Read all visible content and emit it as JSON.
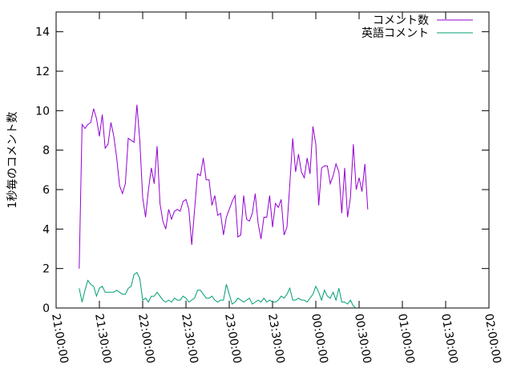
{
  "chart_data": {
    "type": "line",
    "title": "",
    "xlabel": "",
    "ylabel": "1秒毎のコメント数",
    "xlim": [
      0,
      300
    ],
    "ylim": [
      0,
      15
    ],
    "grid": false,
    "legend_position": "top-right",
    "x_ticks": [
      {
        "v": 0,
        "label": "21:00:00"
      },
      {
        "v": 30,
        "label": "21:30:00"
      },
      {
        "v": 60,
        "label": "22:00:00"
      },
      {
        "v": 90,
        "label": "22:30:00"
      },
      {
        "v": 120,
        "label": "23:00:00"
      },
      {
        "v": 150,
        "label": "23:30:00"
      },
      {
        "v": 180,
        "label": "00:00:00"
      },
      {
        "v": 210,
        "label": "00:30:00"
      },
      {
        "v": 240,
        "label": "01:00:00"
      },
      {
        "v": 270,
        "label": "01:30:00"
      },
      {
        "v": 300,
        "label": "02:00:00"
      }
    ],
    "y_ticks": [
      {
        "v": 0,
        "label": "0"
      },
      {
        "v": 2,
        "label": "2"
      },
      {
        "v": 4,
        "label": "4"
      },
      {
        "v": 6,
        "label": "6"
      },
      {
        "v": 8,
        "label": "8"
      },
      {
        "v": 10,
        "label": "10"
      },
      {
        "v": 12,
        "label": "12"
      },
      {
        "v": 14,
        "label": "14"
      }
    ],
    "series": [
      {
        "name": "コメント数",
        "color": "#9400d3",
        "points": [
          [
            16,
            2.0
          ],
          [
            18,
            9.3
          ],
          [
            20,
            9.1
          ],
          [
            22,
            9.3
          ],
          [
            24,
            9.4
          ],
          [
            26,
            10.1
          ],
          [
            28,
            9.6
          ],
          [
            30,
            8.7
          ],
          [
            32,
            9.8
          ],
          [
            34,
            8.1
          ],
          [
            36,
            8.3
          ],
          [
            38,
            9.4
          ],
          [
            40,
            8.7
          ],
          [
            42,
            7.6
          ],
          [
            44,
            6.2
          ],
          [
            46,
            5.8
          ],
          [
            48,
            6.3
          ],
          [
            50,
            8.6
          ],
          [
            52,
            8.5
          ],
          [
            54,
            8.4
          ],
          [
            56,
            10.3
          ],
          [
            58,
            8.5
          ],
          [
            60,
            5.6
          ],
          [
            62,
            4.6
          ],
          [
            64,
            6.0
          ],
          [
            66,
            7.1
          ],
          [
            68,
            6.3
          ],
          [
            70,
            8.2
          ],
          [
            72,
            5.3
          ],
          [
            74,
            4.4
          ],
          [
            76,
            4.0
          ],
          [
            78,
            5.0
          ],
          [
            80,
            4.5
          ],
          [
            82,
            4.9
          ],
          [
            84,
            5.0
          ],
          [
            86,
            4.9
          ],
          [
            88,
            5.4
          ],
          [
            90,
            5.5
          ],
          [
            92,
            5.0
          ],
          [
            94,
            3.2
          ],
          [
            96,
            5.0
          ],
          [
            98,
            6.8
          ],
          [
            100,
            6.7
          ],
          [
            102,
            7.6
          ],
          [
            104,
            6.5
          ],
          [
            106,
            6.5
          ],
          [
            108,
            5.2
          ],
          [
            110,
            5.7
          ],
          [
            112,
            4.7
          ],
          [
            114,
            4.8
          ],
          [
            116,
            3.7
          ],
          [
            118,
            4.6
          ],
          [
            120,
            5.0
          ],
          [
            122,
            5.4
          ],
          [
            124,
            5.7
          ],
          [
            126,
            3.6
          ],
          [
            128,
            3.7
          ],
          [
            130,
            5.7
          ],
          [
            132,
            4.5
          ],
          [
            134,
            4.4
          ],
          [
            136,
            4.8
          ],
          [
            138,
            5.8
          ],
          [
            140,
            4.3
          ],
          [
            142,
            3.5
          ],
          [
            144,
            4.6
          ],
          [
            146,
            4.6
          ],
          [
            148,
            5.7
          ],
          [
            150,
            4.1
          ],
          [
            152,
            5.3
          ],
          [
            154,
            5.1
          ],
          [
            156,
            5.5
          ],
          [
            158,
            3.7
          ],
          [
            160,
            4.1
          ],
          [
            162,
            6.3
          ],
          [
            164,
            8.6
          ],
          [
            166,
            6.9
          ],
          [
            168,
            7.8
          ],
          [
            170,
            6.9
          ],
          [
            172,
            6.6
          ],
          [
            174,
            7.6
          ],
          [
            176,
            6.8
          ],
          [
            178,
            9.2
          ],
          [
            180,
            8.3
          ],
          [
            182,
            5.2
          ],
          [
            184,
            7.1
          ],
          [
            186,
            7.2
          ],
          [
            188,
            7.2
          ],
          [
            190,
            6.3
          ],
          [
            192,
            6.7
          ],
          [
            194,
            7.3
          ],
          [
            196,
            6.9
          ],
          [
            198,
            4.8
          ],
          [
            200,
            7.1
          ],
          [
            202,
            4.6
          ],
          [
            204,
            5.6
          ],
          [
            206,
            8.3
          ],
          [
            208,
            6.0
          ],
          [
            210,
            6.6
          ],
          [
            212,
            5.9
          ],
          [
            214,
            7.3
          ],
          [
            216,
            5.0
          ]
        ]
      },
      {
        "name": "英語コメント",
        "color": "#009e73",
        "points": [
          [
            16,
            1.0
          ],
          [
            18,
            0.3
          ],
          [
            20,
            0.9
          ],
          [
            22,
            1.4
          ],
          [
            24,
            1.2
          ],
          [
            26,
            1.1
          ],
          [
            28,
            0.6
          ],
          [
            30,
            1.0
          ],
          [
            32,
            1.1
          ],
          [
            34,
            0.8
          ],
          [
            36,
            0.8
          ],
          [
            38,
            0.8
          ],
          [
            40,
            0.8
          ],
          [
            42,
            0.9
          ],
          [
            44,
            0.8
          ],
          [
            46,
            0.7
          ],
          [
            48,
            0.7
          ],
          [
            50,
            1.0
          ],
          [
            52,
            1.1
          ],
          [
            54,
            1.7
          ],
          [
            56,
            1.8
          ],
          [
            58,
            1.5
          ],
          [
            60,
            0.4
          ],
          [
            62,
            0.5
          ],
          [
            64,
            0.3
          ],
          [
            66,
            0.6
          ],
          [
            68,
            0.6
          ],
          [
            70,
            0.8
          ],
          [
            72,
            0.6
          ],
          [
            74,
            0.4
          ],
          [
            76,
            0.3
          ],
          [
            78,
            0.4
          ],
          [
            80,
            0.3
          ],
          [
            82,
            0.5
          ],
          [
            84,
            0.4
          ],
          [
            86,
            0.4
          ],
          [
            88,
            0.6
          ],
          [
            90,
            0.5
          ],
          [
            92,
            0.3
          ],
          [
            94,
            0.4
          ],
          [
            96,
            0.5
          ],
          [
            98,
            0.9
          ],
          [
            100,
            0.9
          ],
          [
            102,
            0.7
          ],
          [
            104,
            0.5
          ],
          [
            106,
            0.5
          ],
          [
            108,
            0.6
          ],
          [
            110,
            0.4
          ],
          [
            112,
            0.3
          ],
          [
            114,
            0.4
          ],
          [
            116,
            0.4
          ],
          [
            118,
            1.2
          ],
          [
            120,
            0.7
          ],
          [
            122,
            0.2
          ],
          [
            124,
            0.3
          ],
          [
            126,
            0.5
          ],
          [
            128,
            0.4
          ],
          [
            130,
            0.3
          ],
          [
            132,
            0.4
          ],
          [
            134,
            0.5
          ],
          [
            136,
            0.2
          ],
          [
            138,
            0.3
          ],
          [
            140,
            0.4
          ],
          [
            142,
            0.3
          ],
          [
            144,
            0.5
          ],
          [
            146,
            0.3
          ],
          [
            148,
            0.4
          ],
          [
            150,
            0.3
          ],
          [
            152,
            0.3
          ],
          [
            154,
            0.4
          ],
          [
            156,
            0.6
          ],
          [
            158,
            0.5
          ],
          [
            160,
            0.7
          ],
          [
            162,
            1.0
          ],
          [
            164,
            0.4
          ],
          [
            166,
            0.4
          ],
          [
            168,
            0.5
          ],
          [
            170,
            0.4
          ],
          [
            172,
            0.4
          ],
          [
            174,
            0.3
          ],
          [
            176,
            0.5
          ],
          [
            178,
            0.7
          ],
          [
            180,
            1.1
          ],
          [
            182,
            0.8
          ],
          [
            184,
            0.4
          ],
          [
            186,
            0.9
          ],
          [
            188,
            0.6
          ],
          [
            190,
            0.5
          ],
          [
            192,
            0.8
          ],
          [
            194,
            0.4
          ],
          [
            196,
            1.0
          ],
          [
            198,
            0.3
          ],
          [
            200,
            0.3
          ],
          [
            202,
            0.2
          ],
          [
            204,
            0.4
          ],
          [
            206,
            0.1
          ],
          [
            208,
            0.0
          ]
        ]
      }
    ]
  }
}
